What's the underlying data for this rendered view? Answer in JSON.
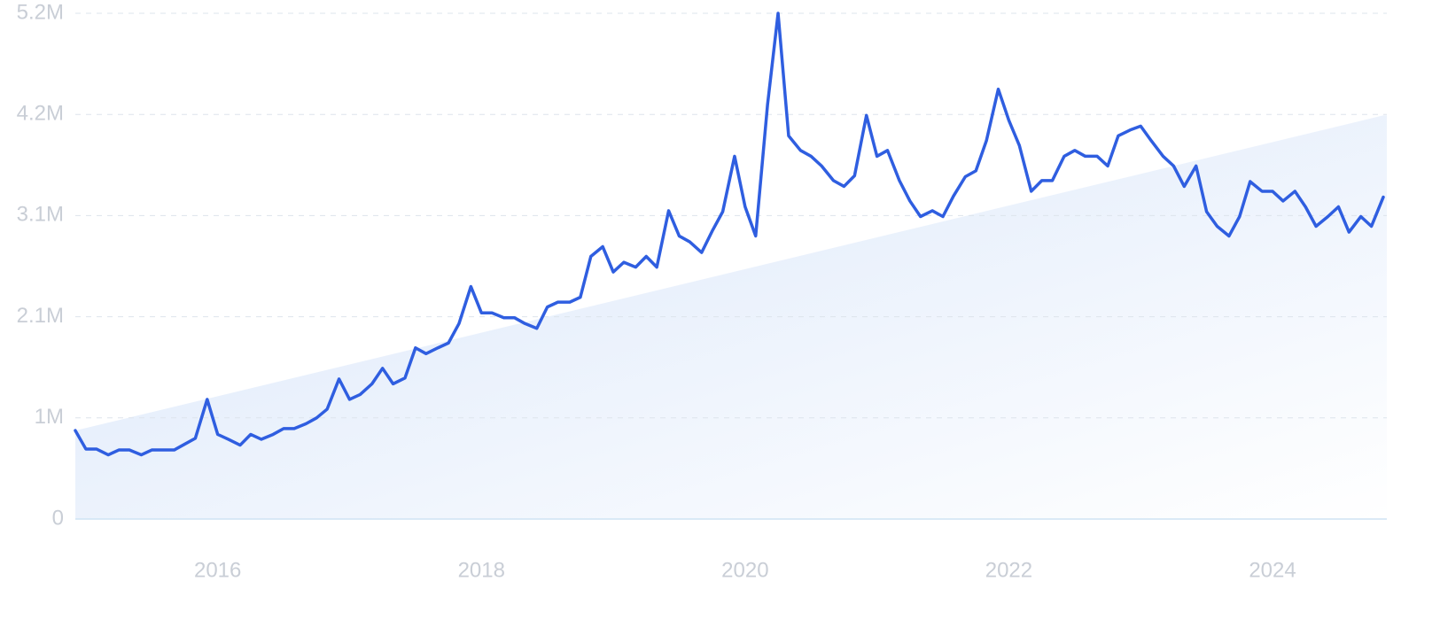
{
  "chart_data": {
    "type": "line",
    "x": [
      2014.92,
      2015.0,
      2015.08,
      2015.17,
      2015.25,
      2015.33,
      2015.42,
      2015.5,
      2015.58,
      2015.67,
      2015.75,
      2015.83,
      2015.92,
      2016.0,
      2016.08,
      2016.17,
      2016.25,
      2016.33,
      2016.42,
      2016.5,
      2016.58,
      2016.67,
      2016.75,
      2016.83,
      2016.92,
      2017.0,
      2017.08,
      2017.17,
      2017.25,
      2017.33,
      2017.42,
      2017.5,
      2017.58,
      2017.67,
      2017.75,
      2017.83,
      2017.92,
      2018.0,
      2018.08,
      2018.17,
      2018.25,
      2018.33,
      2018.42,
      2018.5,
      2018.58,
      2018.67,
      2018.75,
      2018.83,
      2018.92,
      2019.0,
      2019.08,
      2019.17,
      2019.25,
      2019.33,
      2019.42,
      2019.5,
      2019.58,
      2019.67,
      2019.75,
      2019.83,
      2019.92,
      2020.0,
      2020.08,
      2020.17,
      2020.25,
      2020.33,
      2020.42,
      2020.5,
      2020.58,
      2020.67,
      2020.75,
      2020.83,
      2020.92,
      2021.0,
      2021.08,
      2021.17,
      2021.25,
      2021.33,
      2021.42,
      2021.5,
      2021.58,
      2021.67,
      2021.75,
      2021.83,
      2021.92,
      2022.0,
      2022.08,
      2022.17,
      2022.25,
      2022.33,
      2022.42,
      2022.5,
      2022.58,
      2022.67,
      2022.75,
      2022.83,
      2022.92,
      2023.0,
      2023.08,
      2023.17,
      2023.25,
      2023.33,
      2023.42,
      2023.5,
      2023.58,
      2023.67,
      2023.75,
      2023.83,
      2023.92,
      2024.0,
      2024.08,
      2024.17,
      2024.25,
      2024.33,
      2024.42,
      2024.5,
      2024.58,
      2024.67,
      2024.75,
      2024.84
    ],
    "series": [
      {
        "color": "#2f5ee0",
        "values": [
          910000,
          720000,
          720000,
          660000,
          710000,
          710000,
          660000,
          710000,
          710000,
          710000,
          770000,
          830000,
          1230000,
          870000,
          820000,
          760000,
          870000,
          820000,
          870000,
          930000,
          930000,
          980000,
          1040000,
          1130000,
          1440000,
          1230000,
          1280000,
          1390000,
          1550000,
          1390000,
          1450000,
          1760000,
          1700000,
          1760000,
          1810000,
          2010000,
          2390000,
          2120000,
          2120000,
          2070000,
          2070000,
          2010000,
          1960000,
          2180000,
          2230000,
          2230000,
          2280000,
          2700000,
          2800000,
          2540000,
          2640000,
          2590000,
          2700000,
          2590000,
          3170000,
          2910000,
          2850000,
          2740000,
          2960000,
          3160000,
          3730000,
          3210000,
          2910000,
          4260000,
          5200000,
          3940000,
          3790000,
          3730000,
          3630000,
          3480000,
          3420000,
          3530000,
          4150000,
          3730000,
          3790000,
          3480000,
          3270000,
          3110000,
          3170000,
          3110000,
          3320000,
          3520000,
          3580000,
          3890000,
          4420000,
          4100000,
          3840000,
          3370000,
          3480000,
          3480000,
          3730000,
          3790000,
          3730000,
          3730000,
          3630000,
          3940000,
          4000000,
          4040000,
          3890000,
          3730000,
          3630000,
          3420000,
          3630000,
          3160000,
          3010000,
          2910000,
          3110000,
          3470000,
          3370000,
          3370000,
          3270000,
          3370000,
          3210000,
          3010000,
          3110000,
          3210000,
          2950000,
          3110000,
          3010000,
          3310000
        ]
      }
    ],
    "trend": {
      "x": [
        2014.92,
        2024.84
      ],
      "values": [
        910000,
        4150000
      ],
      "color": "#dce8fb"
    },
    "xlim": [
      2014.92,
      2024.84
    ],
    "xticks": [
      2016,
      2018,
      2020,
      2022,
      2024
    ],
    "ylim": [
      0,
      5200000
    ],
    "yticks": [
      0,
      {
        "value": 1040000,
        "label": "1M"
      },
      {
        "value": 2080000,
        "label": "2.1M"
      },
      {
        "value": 3120000,
        "label": "3.1M"
      },
      {
        "value": 4160000,
        "label": "4.2M"
      },
      {
        "value": 5200000,
        "label": "5.2M"
      }
    ],
    "grid": true
  }
}
